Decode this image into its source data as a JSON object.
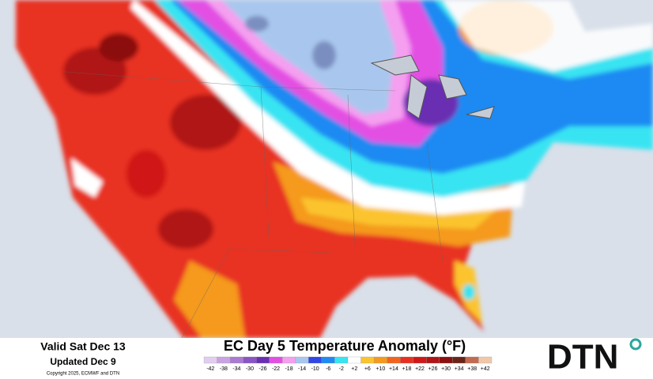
{
  "info": {
    "valid": "Valid Sat Dec 13",
    "updated": "Updated Dec 9",
    "copyright": "Copyright 2025, ECMWF and DTN"
  },
  "title": "EC Day 5 Temperature Anomaly (°F)",
  "logo": "DTN",
  "legend": [
    {
      "label": "-42",
      "color": "#e2cdf0"
    },
    {
      "label": "-38",
      "color": "#c9a3e3"
    },
    {
      "label": "-34",
      "color": "#a97bd3"
    },
    {
      "label": "-30",
      "color": "#8a55c4"
    },
    {
      "label": "-26",
      "color": "#6a2fb3"
    },
    {
      "label": "-22",
      "color": "#e34fe3"
    },
    {
      "label": "-18",
      "color": "#f59ff0"
    },
    {
      "label": "-14",
      "color": "#a9c7ee"
    },
    {
      "label": "-10",
      "color": "#2f47e6"
    },
    {
      "label": "-6",
      "color": "#1f8af2"
    },
    {
      "label": "-2",
      "color": "#38e4f2"
    },
    {
      "label": "+2",
      "color": "#ffffff"
    },
    {
      "label": "+6",
      "color": "#fbc42e"
    },
    {
      "label": "+10",
      "color": "#f59a1c"
    },
    {
      "label": "+14",
      "color": "#f2641e"
    },
    {
      "label": "+18",
      "color": "#e83020"
    },
    {
      "label": "+22",
      "color": "#d01818"
    },
    {
      "label": "+26",
      "color": "#b01414"
    },
    {
      "label": "+30",
      "color": "#8c1010"
    },
    {
      "label": "+34",
      "color": "#6a2418"
    },
    {
      "label": "+38",
      "color": "#c46a50"
    },
    {
      "label": "+42",
      "color": "#f2c7a8"
    }
  ]
}
